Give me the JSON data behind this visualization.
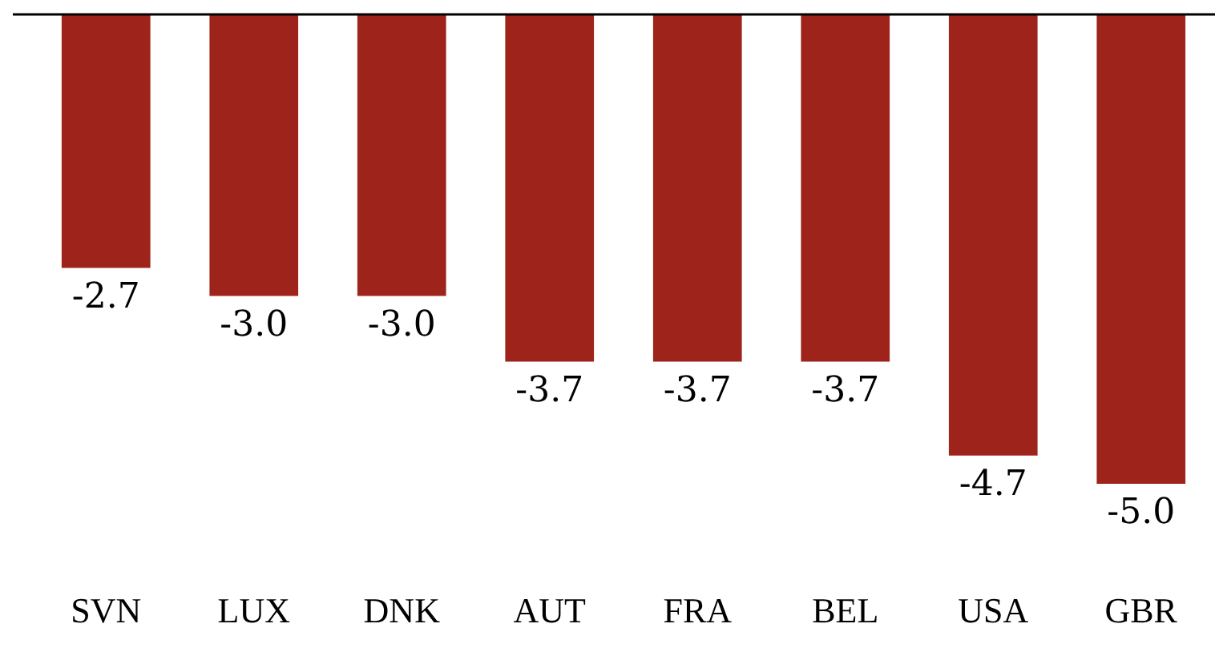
{
  "chart_data": {
    "type": "bar",
    "categories": [
      "SVN",
      "LUX",
      "DNK",
      "AUT",
      "FRA",
      "BEL",
      "USA",
      "GBR"
    ],
    "values": [
      -2.7,
      -3.0,
      -3.0,
      -3.7,
      -3.7,
      -3.7,
      -4.7,
      -5.0
    ],
    "value_labels": [
      "-2.7",
      "-3.0",
      "-3.0",
      "-3.7",
      "-3.7",
      "-3.7",
      "-4.7",
      "-5.0"
    ],
    "color": "#9e241b",
    "tick_labels": "x",
    "grid": false,
    "legend": false
  }
}
